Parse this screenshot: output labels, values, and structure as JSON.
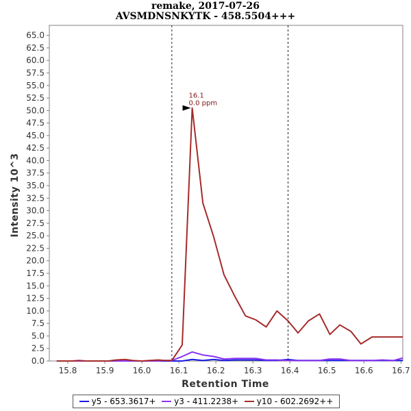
{
  "chart_data": {
    "type": "line",
    "title": "remake, 2017-07-26",
    "subtitle": "AVSMDNSNKYTK - 458.5504+++",
    "xlabel": "Retention Time",
    "ylabel": "Intensity 10^3",
    "xlim": [
      15.75,
      16.705
    ],
    "ylim": [
      0,
      67
    ],
    "x_ticks": [
      "15.8",
      "15.9",
      "16.0",
      "16.1",
      "16.2",
      "16.3",
      "16.4",
      "16.5",
      "16.6",
      "16.7"
    ],
    "y_ticks": [
      "0.0",
      "2.5",
      "5.0",
      "7.5",
      "10.0",
      "12.5",
      "15.0",
      "17.5",
      "20.0",
      "22.5",
      "25.0",
      "27.5",
      "30.0",
      "32.5",
      "35.0",
      "37.5",
      "40.0",
      "42.5",
      "45.0",
      "47.5",
      "50.0",
      "52.5",
      "55.0",
      "57.5",
      "60.0",
      "62.5",
      "65.0"
    ],
    "grid": false,
    "vertical_markers": [
      16.081,
      16.395
    ],
    "annotation": {
      "x": 16.136,
      "y": 50.5,
      "lines": [
        "16.1",
        "0.0 ppm"
      ],
      "color": "#7f1616"
    },
    "x": [
      15.77,
      15.79,
      15.81,
      15.83,
      15.85,
      15.87,
      15.89,
      15.91,
      15.93,
      15.955,
      15.975,
      16.0,
      16.02,
      16.045,
      16.06,
      16.081,
      16.109,
      16.136,
      16.165,
      16.194,
      16.222,
      16.252,
      16.28,
      16.308,
      16.336,
      16.365,
      16.395,
      16.422,
      16.45,
      16.48,
      16.508,
      16.535,
      16.565,
      16.592,
      16.622,
      16.65,
      16.68,
      16.705
    ],
    "series": [
      {
        "name": "y5 - 653.3617+",
        "color": "#1a1ae6",
        "values": [
          0,
          0,
          0,
          0,
          0,
          0,
          0,
          0,
          0,
          0,
          0,
          0,
          0,
          0,
          0,
          0,
          0,
          0.3,
          0.1,
          0.3,
          0.1,
          0.2,
          0.2,
          0.2,
          0.1,
          0.1,
          0.3,
          0.1,
          0.1,
          0.1,
          0.1,
          0.1,
          0.1,
          0.1,
          0.1,
          0.1,
          0.1,
          0.1
        ]
      },
      {
        "name": "y3 - 411.2238+",
        "color": "#8833ee",
        "values": [
          0,
          0,
          0,
          0,
          0,
          0,
          0,
          0,
          0,
          0,
          0,
          0,
          0,
          0,
          0.1,
          0.1,
          0.9,
          1.8,
          1.2,
          0.9,
          0.4,
          0.5,
          0.5,
          0.5,
          0.2,
          0.2,
          0.1,
          0.1,
          0.1,
          0.1,
          0.4,
          0.4,
          0.1,
          0.1,
          0.1,
          0.2,
          0.1,
          0.6
        ]
      },
      {
        "name": "y10 - 602.2692++",
        "color": "#a52a2a",
        "values": [
          0,
          0,
          0,
          0.1,
          0,
          0,
          0,
          0,
          0.2,
          0.3,
          0.1,
          0,
          0.1,
          0.2,
          0.1,
          0.1,
          3.2,
          50.5,
          31.5,
          24.8,
          17.2,
          12.8,
          9.0,
          8.2,
          6.8,
          10.0,
          8.0,
          5.6,
          8.0,
          9.4,
          5.3,
          7.2,
          5.9,
          3.4,
          4.8,
          4.8,
          4.8,
          4.8
        ]
      }
    ]
  }
}
